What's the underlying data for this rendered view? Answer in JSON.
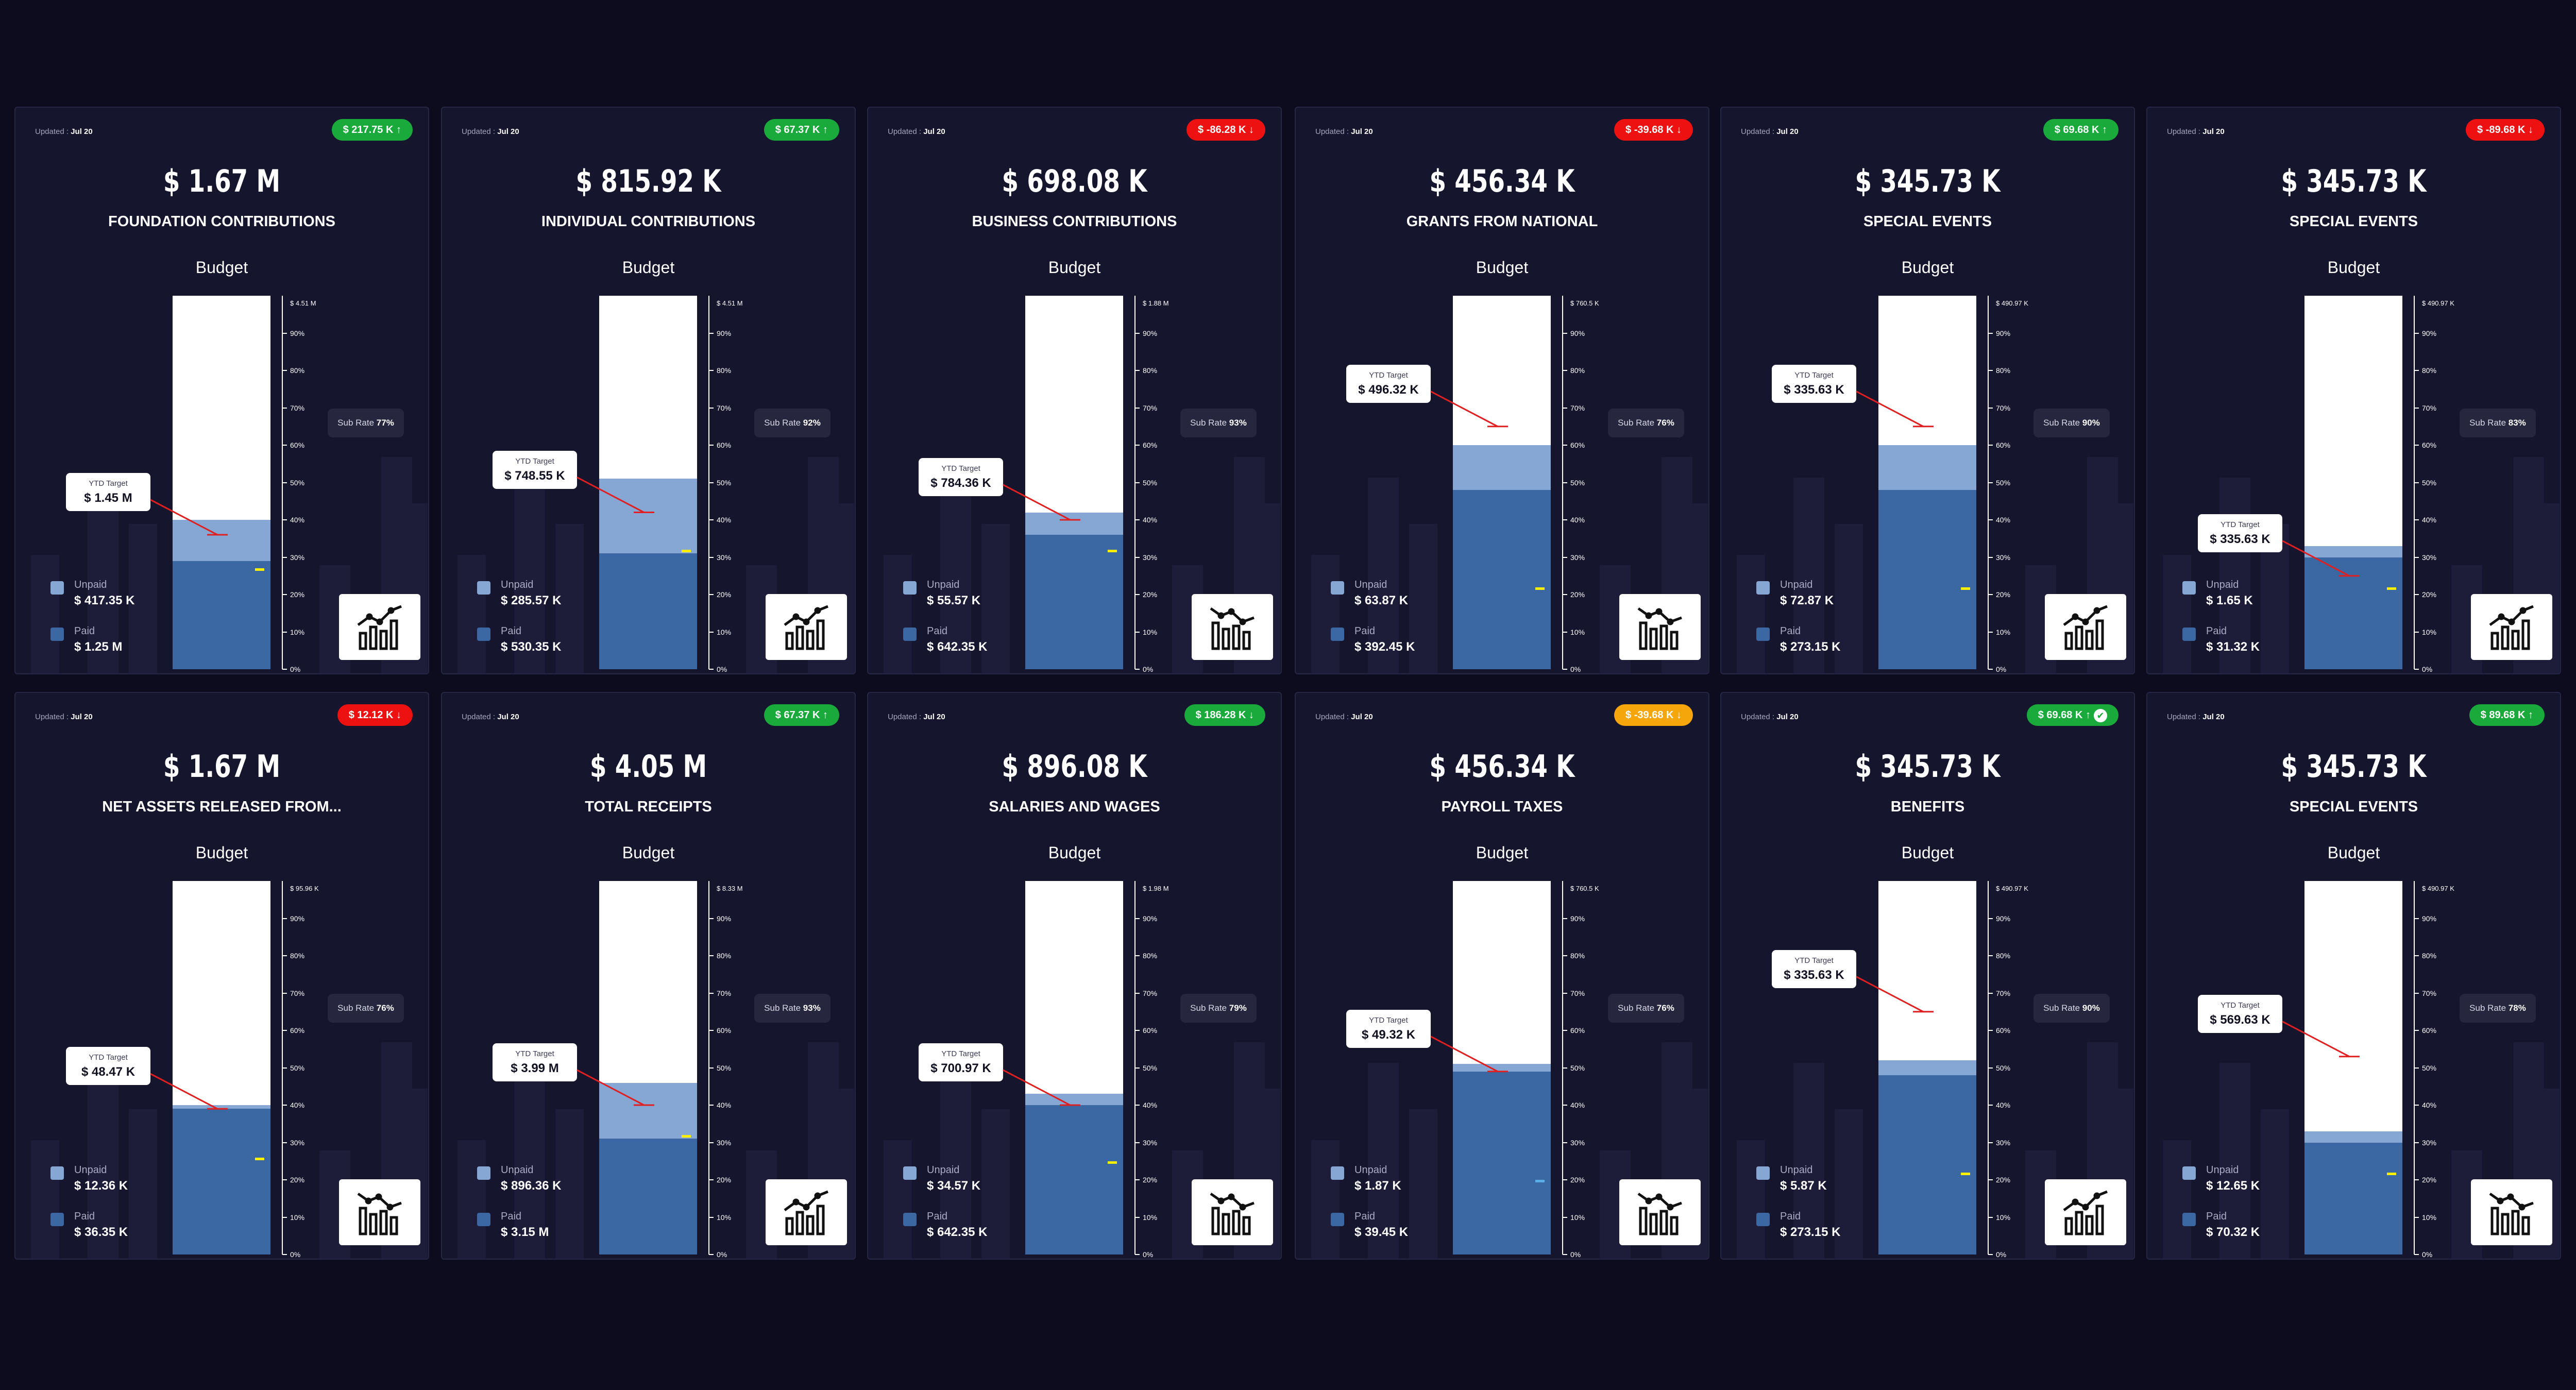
{
  "colors": {
    "background": "#0c0c1e",
    "card": "#15152e",
    "paid": "#3b68a3",
    "unpaid": "#86a6d4",
    "up": "#1aaa3c",
    "down": "#ee1111",
    "warn": "#f5a60b"
  },
  "common": {
    "updated_prefix": "Updated : ",
    "budget_label": "Budget",
    "ytd_label": "YTD Target",
    "sub_rate_label": "Sub Rate",
    "unpaid_label": "Unpaid",
    "paid_label": "Paid",
    "ticks": [
      "90%",
      "80%",
      "70%",
      "60%",
      "50%",
      "40%",
      "30%",
      "20%",
      "10%",
      "0%"
    ]
  },
  "cards": [
    {
      "updated": "Jul 20",
      "badge": "$ 217.75 K ↑",
      "badge_status": "up",
      "amount": "$ 1.67 M",
      "label": "FOUNDATION CONTRIBUTIONS",
      "scale_max": "$ 4.51 M",
      "sub_rate": "77%",
      "ytd": "$ 1.45 M",
      "ytd_level": 0.36,
      "unpaid": "$ 417.35 K",
      "paid": "$ 1.25 M",
      "paid_frac": 0.29,
      "unpaid_frac": 0.11,
      "marker_frac": 0.27,
      "icon": "chart-up-icon"
    },
    {
      "updated": "Jul 20",
      "badge": "$ 67.37 K ↑",
      "badge_status": "up",
      "amount": "$ 815.92 K",
      "label": "INDIVIDUAL CONTRIBUTIONS",
      "scale_max": "$ 4.51 M",
      "sub_rate": "92%",
      "ytd": "$ 748.55 K",
      "ytd_level": 0.42,
      "unpaid": "$ 285.57 K",
      "paid": "$ 530.35 K",
      "paid_frac": 0.31,
      "unpaid_frac": 0.2,
      "marker_frac": 0.32,
      "icon": "chart-up-icon"
    },
    {
      "updated": "Jul 20",
      "badge": "$ -86.28 K ↓",
      "badge_status": "down",
      "amount": "$ 698.08 K",
      "label": "BUSINESS CONTRIBUTIONS",
      "scale_max": "$ 1.88 M",
      "sub_rate": "93%",
      "ytd": "$ 784.36 K",
      "ytd_level": 0.4,
      "unpaid": "$ 55.57 K",
      "paid": "$ 642.35 K",
      "paid_frac": 0.36,
      "unpaid_frac": 0.06,
      "marker_frac": 0.32,
      "icon": "chart-down-icon"
    },
    {
      "updated": "Jul 20",
      "badge": "$ -39.68 K ↓",
      "badge_status": "down",
      "amount": "$ 456.34 K",
      "label": "GRANTS FROM NATIONAL",
      "scale_max": "$ 760.5 K",
      "sub_rate": "76%",
      "ytd": "$ 496.32 K",
      "ytd_level": 0.65,
      "unpaid": "$ 63.87 K",
      "paid": "$ 392.45 K",
      "paid_frac": 0.48,
      "unpaid_frac": 0.12,
      "marker_frac": 0.22,
      "icon": "chart-down-icon"
    },
    {
      "updated": "Jul 20",
      "badge": "$ 69.68 K ↑",
      "badge_status": "up",
      "amount": "$ 345.73 K",
      "label": "SPECIAL EVENTS",
      "scale_max": "$ 490.97 K",
      "sub_rate": "90%",
      "ytd": "$ 335.63 K",
      "ytd_level": 0.65,
      "unpaid": "$ 72.87 K",
      "paid": "$ 273.15 K",
      "paid_frac": 0.48,
      "unpaid_frac": 0.12,
      "marker_frac": 0.22,
      "icon": "chart-up-icon"
    },
    {
      "updated": "Jul 20",
      "badge": "$ -89.68 K ↓",
      "badge_status": "down",
      "amount": "$ 345.73 K",
      "label": "SPECIAL EVENTS",
      "scale_max": "$ 490.97 K",
      "sub_rate": "83%",
      "ytd": "$ 335.63 K",
      "ytd_level": 0.25,
      "unpaid": "$ 1.65 K",
      "paid": "$ 31.32 K",
      "paid_frac": 0.3,
      "unpaid_frac": 0.03,
      "marker_frac": 0.22,
      "icon": "chart-up-icon"
    },
    {
      "updated": "Jul 20",
      "badge": "$ 12.12 K ↓",
      "badge_status": "down",
      "amount": "$ 1.67 M",
      "label": "NET ASSETS RELEASED FROM...",
      "scale_max": "$ 95.96 K",
      "sub_rate": "76%",
      "ytd": "$ 48.47 K",
      "ytd_level": 0.39,
      "unpaid": "$ 12.36 K",
      "paid": "$ 36.35 K",
      "paid_frac": 0.39,
      "unpaid_frac": 0.01,
      "marker_frac": 0.26,
      "icon": "chart-down-icon"
    },
    {
      "updated": "Jul 20",
      "badge": "$ 67.37 K ↑",
      "badge_status": "up",
      "amount": "$ 4.05 M",
      "label": "TOTAL RECEIPTS",
      "scale_max": "$ 8.33 M",
      "sub_rate": "93%",
      "ytd": "$ 3.99 M",
      "ytd_level": 0.4,
      "unpaid": "$ 896.36 K",
      "paid": "$ 3.15 M",
      "paid_frac": 0.31,
      "unpaid_frac": 0.15,
      "marker_frac": 0.32,
      "icon": "chart-up-icon"
    },
    {
      "updated": "Jul 20",
      "badge": "$ 186.28 K ↓",
      "badge_status": "up",
      "amount": "$ 896.08 K",
      "label": "SALARIES AND WAGES",
      "scale_max": "$ 1.98 M",
      "sub_rate": "79%",
      "ytd": "$ 700.97 K",
      "ytd_level": 0.4,
      "unpaid": "$ 34.57 K",
      "paid": "$ 642.35 K",
      "paid_frac": 0.4,
      "unpaid_frac": 0.03,
      "marker_frac": 0.25,
      "icon": "chart-down-icon"
    },
    {
      "updated": "Jul 20",
      "badge": "$ -39.68 K ↓",
      "badge_status": "warn",
      "amount": "$ 456.34 K",
      "label": "PAYROLL TAXES",
      "scale_max": "$ 760.5 K",
      "sub_rate": "76%",
      "ytd": "$ 49.32 K",
      "ytd_level": 0.49,
      "unpaid": "$ 1.87 K",
      "paid": "$ 39.45 K",
      "paid_frac": 0.49,
      "unpaid_frac": 0.02,
      "marker_frac": 0.2,
      "marker_color": "#5aaee8",
      "icon": "chart-down-icon"
    },
    {
      "updated": "Jul 20",
      "badge": "$ 69.68 K ↑",
      "badge_status": "up",
      "badge_check": true,
      "amount": "$ 345.73 K",
      "label": "BENEFITS",
      "scale_max": "$ 490.97 K",
      "sub_rate": "90%",
      "ytd": "$ 335.63 K",
      "ytd_level": 0.65,
      "unpaid": "$ 5.87 K",
      "paid": "$ 273.15 K",
      "paid_frac": 0.48,
      "unpaid_frac": 0.04,
      "marker_frac": 0.22,
      "icon": "chart-up-icon"
    },
    {
      "updated": "Jul 20",
      "badge": "$ 89.68 K ↑",
      "badge_status": "up",
      "amount": "$ 345.73 K",
      "label": "SPECIAL EVENTS",
      "scale_max": "$ 490.97 K",
      "sub_rate": "78%",
      "ytd": "$ 569.63 K",
      "ytd_level": 0.53,
      "unpaid": "$ 12.65 K",
      "paid": "$ 70.32 K",
      "paid_frac": 0.3,
      "unpaid_frac": 0.03,
      "marker_frac": 0.22,
      "icon": "chart-down-icon"
    }
  ]
}
